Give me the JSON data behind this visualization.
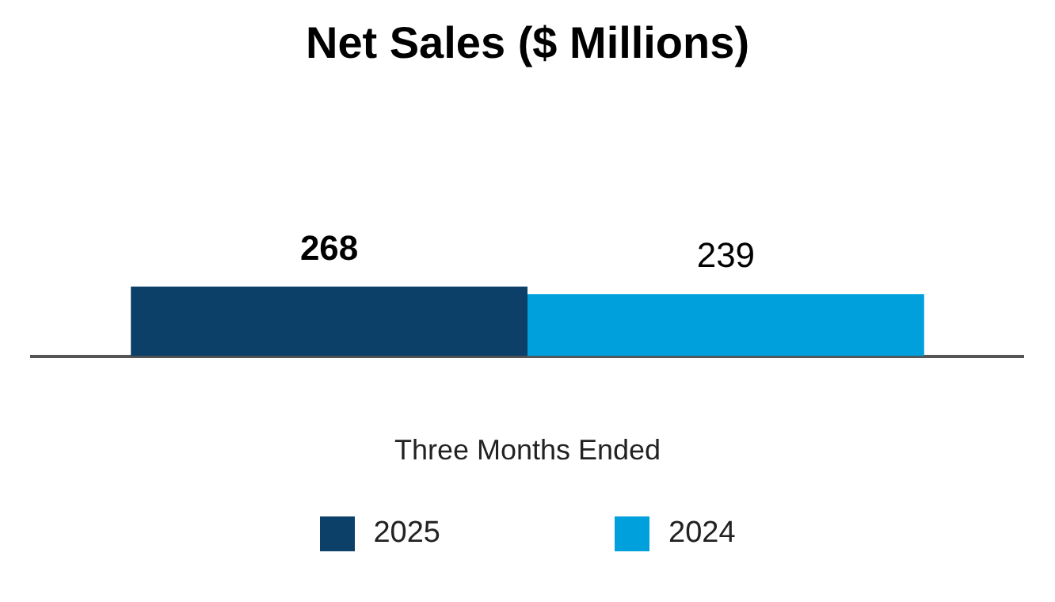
{
  "chart_data": {
    "type": "bar",
    "title": "Net Sales ($ Millions)",
    "xlabel": "Three Months Ended",
    "categories": [
      null
    ],
    "series": [
      {
        "name": "2025",
        "color": "#0d4068",
        "values": [
          268
        ]
      },
      {
        "name": "2024",
        "color": "#00a0dc",
        "values": [
          239
        ]
      }
    ],
    "data_labels": true,
    "legend": "bottom",
    "grid": false,
    "tick_labels": "x"
  }
}
